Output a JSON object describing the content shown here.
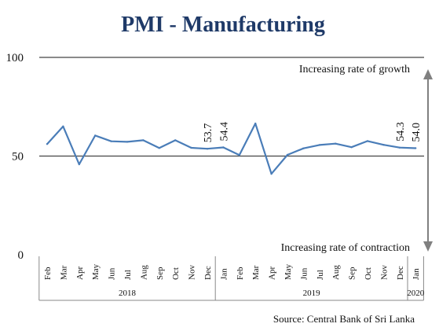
{
  "chart_data": {
    "type": "line",
    "title": "PMI - Manufacturing",
    "source": "Source: Central Bank of Sri Lanka",
    "categories": [
      "Feb",
      "Mar",
      "Apr",
      "May",
      "Jun",
      "Jul",
      "Aug",
      "Sep",
      "Oct",
      "Nov",
      "Dec",
      "Jan",
      "Feb",
      "Mar",
      "Apr",
      "May",
      "Jun",
      "Jul",
      "Aug",
      "Sep",
      "Oct",
      "Nov",
      "Dec",
      "Jan"
    ],
    "years": [
      {
        "label": "2018",
        "from": 0,
        "to": 10
      },
      {
        "label": "2019",
        "from": 11,
        "to": 22
      },
      {
        "label": "2020",
        "from": 23,
        "to": 23
      }
    ],
    "series": [
      {
        "values": [
          56.1,
          65.0,
          45.8,
          60.4,
          57.5,
          57.2,
          58.0,
          54.1,
          58.0,
          54.2,
          53.7,
          54.4,
          50.5,
          66.5,
          41.0,
          50.6,
          53.9,
          55.6,
          56.3,
          54.5,
          57.6,
          55.7,
          54.3,
          54.0
        ],
        "color": "#4a7db8"
      }
    ],
    "data_labels": [
      {
        "index": 10,
        "text": "53.7"
      },
      {
        "index": 11,
        "text": "54.4"
      },
      {
        "index": 22,
        "text": "54.3"
      },
      {
        "index": 23,
        "text": "54.0"
      }
    ],
    "yticks": [
      0,
      50,
      100
    ],
    "ylim": [
      0,
      100
    ],
    "annotations": {
      "growth": "Increasing rate of growth",
      "contraction": "Increasing rate of contraction"
    },
    "arrow_color": "#808080",
    "line_color": "#444444"
  }
}
